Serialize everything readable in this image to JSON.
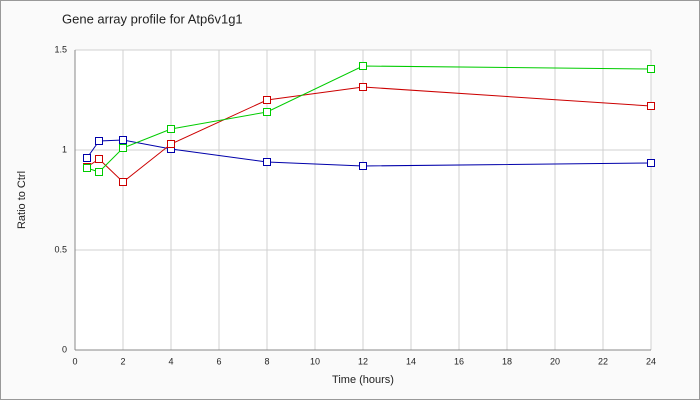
{
  "chart_data": {
    "type": "line",
    "title": "Gene array profile for Atp6v1g1",
    "x_label": "Time (hours)",
    "y_label": "Ratio to Ctrl",
    "x": [
      0.5,
      1,
      2,
      4,
      8,
      12,
      24
    ],
    "series": [
      {
        "color": "#0000aa",
        "values": [
          0.96,
          1.045,
          1.05,
          1.005,
          0.94,
          0.92,
          0.935
        ]
      },
      {
        "color": "#cc0000",
        "values": [
          0.915,
          0.955,
          0.84,
          1.03,
          1.25,
          1.315,
          1.22
        ]
      },
      {
        "color": "#00cc00",
        "values": [
          0.91,
          0.89,
          1.01,
          1.105,
          1.19,
          1.42,
          1.405
        ]
      }
    ],
    "xlim": [
      0,
      24
    ],
    "xticks": [
      0,
      2,
      4,
      6,
      8,
      10,
      12,
      14,
      16,
      18,
      20,
      22,
      24
    ],
    "ylim": [
      0,
      1.5
    ],
    "yticks": [
      0,
      0.5,
      1,
      1.5
    ],
    "grid": true
  }
}
